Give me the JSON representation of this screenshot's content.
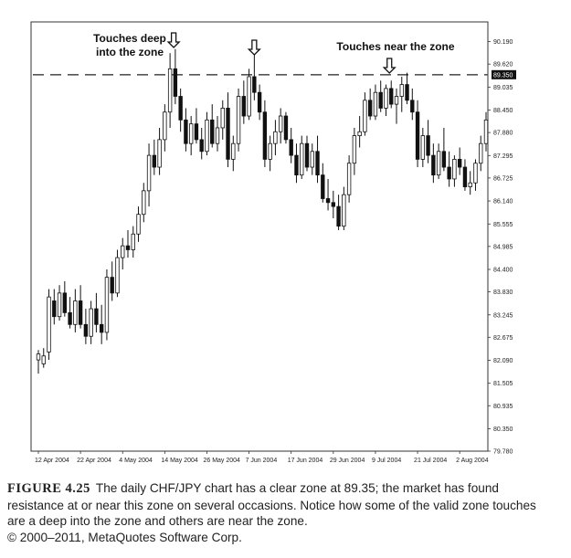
{
  "chart_data": {
    "type": "candlestick",
    "ylim": [
      79.78,
      90.46
    ],
    "grid": false,
    "y_ticks": [
      "90.190",
      "89.620",
      "89.035",
      "88.450",
      "87.880",
      "87.295",
      "86.725",
      "86.140",
      "85.555",
      "84.985",
      "84.400",
      "83.830",
      "83.245",
      "82.675",
      "82.090",
      "81.505",
      "80.935",
      "80.350",
      "79.780"
    ],
    "y_tick_values": [
      90.19,
      89.62,
      89.035,
      88.45,
      87.88,
      87.295,
      86.725,
      86.14,
      85.555,
      84.985,
      84.4,
      83.83,
      83.245,
      82.675,
      82.09,
      81.505,
      80.935,
      80.35,
      79.78
    ],
    "x_ticks": [
      "12 Apr 2004",
      "22 Apr 2004",
      "4 May 2004",
      "14 May 2004",
      "26 May 2004",
      "7 Jun 2004",
      "17 Jun 2004",
      "29 Jun 2004",
      "9 Jul 2004",
      "21 Jul 2004",
      "2 Aug 2004"
    ],
    "x_tick_index": [
      0,
      8,
      16,
      24,
      32,
      40,
      48,
      56,
      64,
      72,
      80
    ],
    "zone": {
      "value": 89.35,
      "label": "89.350"
    },
    "candles": [
      {
        "o": 82.1,
        "h": 82.35,
        "l": 81.75,
        "c": 82.25
      },
      {
        "o": 82.0,
        "h": 82.4,
        "l": 81.9,
        "c": 82.2
      },
      {
        "o": 82.3,
        "h": 83.9,
        "l": 82.1,
        "c": 83.7
      },
      {
        "o": 83.6,
        "h": 83.9,
        "l": 83.0,
        "c": 83.2
      },
      {
        "o": 83.2,
        "h": 84.0,
        "l": 83.1,
        "c": 83.8
      },
      {
        "o": 83.8,
        "h": 84.1,
        "l": 83.2,
        "c": 83.3
      },
      {
        "o": 83.3,
        "h": 83.7,
        "l": 82.9,
        "c": 83.0
      },
      {
        "o": 83.0,
        "h": 83.9,
        "l": 82.8,
        "c": 83.6
      },
      {
        "o": 83.6,
        "h": 84.0,
        "l": 82.9,
        "c": 83.0
      },
      {
        "o": 83.0,
        "h": 83.4,
        "l": 82.5,
        "c": 82.7
      },
      {
        "o": 82.7,
        "h": 83.6,
        "l": 82.5,
        "c": 83.4
      },
      {
        "o": 83.4,
        "h": 83.8,
        "l": 82.8,
        "c": 83.0
      },
      {
        "o": 83.0,
        "h": 83.5,
        "l": 82.5,
        "c": 82.8
      },
      {
        "o": 82.8,
        "h": 84.4,
        "l": 82.6,
        "c": 84.2
      },
      {
        "o": 84.2,
        "h": 84.6,
        "l": 83.6,
        "c": 83.8
      },
      {
        "o": 83.8,
        "h": 84.9,
        "l": 83.7,
        "c": 84.7
      },
      {
        "o": 84.7,
        "h": 85.2,
        "l": 84.4,
        "c": 85.0
      },
      {
        "o": 85.0,
        "h": 85.4,
        "l": 84.7,
        "c": 84.9
      },
      {
        "o": 84.9,
        "h": 85.5,
        "l": 84.7,
        "c": 85.3
      },
      {
        "o": 85.3,
        "h": 86.0,
        "l": 85.1,
        "c": 85.8
      },
      {
        "o": 85.8,
        "h": 86.6,
        "l": 85.6,
        "c": 86.4
      },
      {
        "o": 86.4,
        "h": 87.6,
        "l": 86.0,
        "c": 87.3
      },
      {
        "o": 87.3,
        "h": 87.7,
        "l": 86.8,
        "c": 87.0
      },
      {
        "o": 87.0,
        "h": 88.0,
        "l": 86.8,
        "c": 87.7
      },
      {
        "o": 87.7,
        "h": 88.6,
        "l": 87.4,
        "c": 88.4
      },
      {
        "o": 88.4,
        "h": 89.9,
        "l": 88.0,
        "c": 89.5
      },
      {
        "o": 89.5,
        "h": 90.0,
        "l": 88.6,
        "c": 88.8
      },
      {
        "o": 88.8,
        "h": 89.0,
        "l": 87.9,
        "c": 88.2
      },
      {
        "o": 88.2,
        "h": 88.5,
        "l": 87.4,
        "c": 87.6
      },
      {
        "o": 87.6,
        "h": 88.3,
        "l": 87.3,
        "c": 88.1
      },
      {
        "o": 88.1,
        "h": 88.5,
        "l": 87.6,
        "c": 87.7
      },
      {
        "o": 87.7,
        "h": 88.0,
        "l": 87.2,
        "c": 87.4
      },
      {
        "o": 87.4,
        "h": 88.4,
        "l": 87.3,
        "c": 88.2
      },
      {
        "o": 88.2,
        "h": 88.6,
        "l": 87.5,
        "c": 87.6
      },
      {
        "o": 87.6,
        "h": 88.3,
        "l": 87.4,
        "c": 88.0
      },
      {
        "o": 88.0,
        "h": 88.7,
        "l": 87.7,
        "c": 88.5
      },
      {
        "o": 88.5,
        "h": 88.9,
        "l": 87.0,
        "c": 87.2
      },
      {
        "o": 87.2,
        "h": 87.8,
        "l": 86.9,
        "c": 87.6
      },
      {
        "o": 87.6,
        "h": 89.0,
        "l": 87.4,
        "c": 88.8
      },
      {
        "o": 88.8,
        "h": 89.2,
        "l": 88.1,
        "c": 88.3
      },
      {
        "o": 88.3,
        "h": 89.5,
        "l": 88.2,
        "c": 89.3
      },
      {
        "o": 89.3,
        "h": 90.0,
        "l": 88.7,
        "c": 88.9
      },
      {
        "o": 88.9,
        "h": 89.1,
        "l": 88.2,
        "c": 88.4
      },
      {
        "o": 88.4,
        "h": 88.7,
        "l": 87.0,
        "c": 87.2
      },
      {
        "o": 87.2,
        "h": 87.8,
        "l": 86.9,
        "c": 87.6
      },
      {
        "o": 87.6,
        "h": 88.2,
        "l": 87.3,
        "c": 87.9
      },
      {
        "o": 87.9,
        "h": 88.5,
        "l": 87.6,
        "c": 88.3
      },
      {
        "o": 88.3,
        "h": 88.4,
        "l": 87.6,
        "c": 87.7
      },
      {
        "o": 87.7,
        "h": 88.0,
        "l": 87.1,
        "c": 87.3
      },
      {
        "o": 87.3,
        "h": 87.6,
        "l": 86.6,
        "c": 86.8
      },
      {
        "o": 86.8,
        "h": 87.8,
        "l": 86.7,
        "c": 87.6
      },
      {
        "o": 87.6,
        "h": 87.8,
        "l": 86.9,
        "c": 87.0
      },
      {
        "o": 87.0,
        "h": 87.6,
        "l": 86.8,
        "c": 87.4
      },
      {
        "o": 87.4,
        "h": 87.8,
        "l": 86.6,
        "c": 86.8
      },
      {
        "o": 86.8,
        "h": 87.1,
        "l": 86.1,
        "c": 86.2
      },
      {
        "o": 86.2,
        "h": 86.7,
        "l": 85.9,
        "c": 86.1
      },
      {
        "o": 86.1,
        "h": 86.4,
        "l": 85.7,
        "c": 86.0
      },
      {
        "o": 86.0,
        "h": 86.3,
        "l": 85.4,
        "c": 85.5
      },
      {
        "o": 85.5,
        "h": 86.5,
        "l": 85.4,
        "c": 86.3
      },
      {
        "o": 86.3,
        "h": 87.3,
        "l": 86.1,
        "c": 87.1
      },
      {
        "o": 87.1,
        "h": 88.0,
        "l": 86.8,
        "c": 87.8
      },
      {
        "o": 87.8,
        "h": 88.3,
        "l": 87.5,
        "c": 87.9
      },
      {
        "o": 87.9,
        "h": 88.9,
        "l": 87.8,
        "c": 88.7
      },
      {
        "o": 88.7,
        "h": 89.0,
        "l": 88.2,
        "c": 88.3
      },
      {
        "o": 88.3,
        "h": 89.1,
        "l": 88.2,
        "c": 88.9
      },
      {
        "o": 88.9,
        "h": 89.2,
        "l": 88.4,
        "c": 88.5
      },
      {
        "o": 88.5,
        "h": 89.1,
        "l": 88.3,
        "c": 89.0
      },
      {
        "o": 89.0,
        "h": 89.2,
        "l": 88.5,
        "c": 88.6
      },
      {
        "o": 88.6,
        "h": 89.0,
        "l": 88.1,
        "c": 88.8
      },
      {
        "o": 88.8,
        "h": 89.3,
        "l": 88.4,
        "c": 89.1
      },
      {
        "o": 89.1,
        "h": 89.4,
        "l": 88.6,
        "c": 88.7
      },
      {
        "o": 88.7,
        "h": 89.0,
        "l": 88.2,
        "c": 88.4
      },
      {
        "o": 88.4,
        "h": 88.7,
        "l": 87.0,
        "c": 87.2
      },
      {
        "o": 87.2,
        "h": 88.0,
        "l": 87.0,
        "c": 87.8
      },
      {
        "o": 87.8,
        "h": 88.2,
        "l": 87.1,
        "c": 87.3
      },
      {
        "o": 87.3,
        "h": 87.6,
        "l": 86.6,
        "c": 86.8
      },
      {
        "o": 86.8,
        "h": 87.6,
        "l": 86.7,
        "c": 87.4
      },
      {
        "o": 87.4,
        "h": 88.0,
        "l": 86.9,
        "c": 87.0
      },
      {
        "o": 87.0,
        "h": 87.4,
        "l": 86.5,
        "c": 86.7
      },
      {
        "o": 86.7,
        "h": 87.3,
        "l": 86.5,
        "c": 87.2
      },
      {
        "o": 87.2,
        "h": 87.5,
        "l": 86.8,
        "c": 87.0
      },
      {
        "o": 87.0,
        "h": 87.2,
        "l": 86.4,
        "c": 86.5
      },
      {
        "o": 86.5,
        "h": 86.9,
        "l": 86.3,
        "c": 86.6
      },
      {
        "o": 86.6,
        "h": 87.2,
        "l": 86.4,
        "c": 87.1
      },
      {
        "o": 87.1,
        "h": 87.8,
        "l": 86.9,
        "c": 87.6
      },
      {
        "o": 87.6,
        "h": 88.4,
        "l": 87.4,
        "c": 88.2
      }
    ],
    "annotations": [
      {
        "id": "deep",
        "lines": [
          "Touches deep",
          "into the zone"
        ]
      },
      {
        "id": "second",
        "lines": []
      },
      {
        "id": "near",
        "lines": [
          "Touches near the zone"
        ]
      }
    ],
    "arrow_targets": [
      25,
      41,
      67
    ]
  },
  "caption": {
    "figure_label": "FIGURE 4.25",
    "text": "The daily CHF/JPY chart has a clear zone at 89.35; the market has found resistance at or near this zone on several occasions. Notice how some of the valid zone touches are a deep into the zone and others are near the zone.",
    "copyright": "© 2000–2011, MetaQuotes Software Corp."
  }
}
